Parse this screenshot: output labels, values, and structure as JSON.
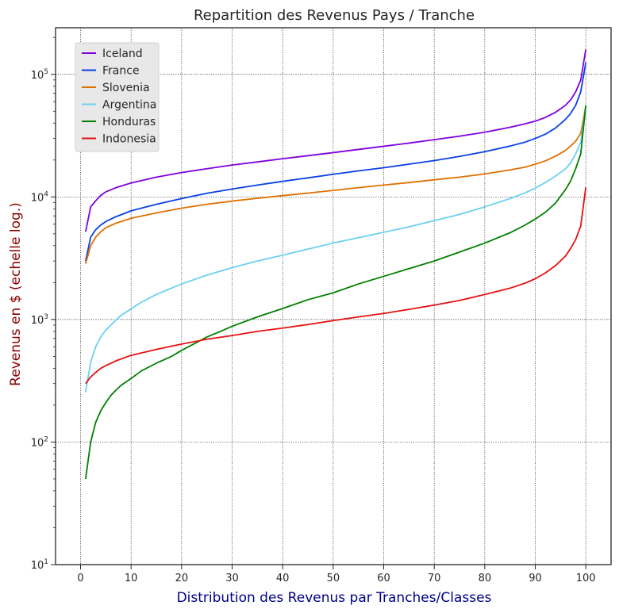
{
  "chart_data": {
    "type": "line",
    "title": "Repartition des Revenus Pays / Tranche",
    "xlabel": "Distribution des Revenus par Tranches/Classes",
    "ylabel": "Revenus en $  (echelle log.)",
    "xlim": [
      -4.95,
      105
    ],
    "ylim": [
      10,
      240000
    ],
    "yscale": "log",
    "grid": true,
    "legend_position": "top-left",
    "x_ticks": [
      0,
      10,
      20,
      30,
      40,
      50,
      60,
      70,
      80,
      90,
      100
    ],
    "y_ticks": [
      {
        "value": 10,
        "base": "10",
        "exp": "1"
      },
      {
        "value": 100,
        "base": "10",
        "exp": "2"
      },
      {
        "value": 1000,
        "base": "10",
        "exp": "3"
      },
      {
        "value": 10000,
        "base": "10",
        "exp": "4"
      },
      {
        "value": 100000,
        "base": "10",
        "exp": "5"
      }
    ],
    "colors": {
      "title": "#262626",
      "xlabel": "#00008b",
      "ylabel": "#8b0000",
      "grid": "#262626",
      "legend_bg": "#e8e8e8"
    },
    "series": [
      {
        "name": "Iceland",
        "color": "#8000e0",
        "points": [
          [
            1,
            5200
          ],
          [
            2,
            8300
          ],
          [
            3,
            9300
          ],
          [
            4,
            10300
          ],
          [
            5,
            11000
          ],
          [
            7,
            11900
          ],
          [
            10,
            13000
          ],
          [
            15,
            14500
          ],
          [
            20,
            15800
          ],
          [
            25,
            17000
          ],
          [
            30,
            18200
          ],
          [
            35,
            19300
          ],
          [
            40,
            20500
          ],
          [
            45,
            21700
          ],
          [
            50,
            23000
          ],
          [
            55,
            24400
          ],
          [
            60,
            25900
          ],
          [
            65,
            27500
          ],
          [
            70,
            29300
          ],
          [
            75,
            31300
          ],
          [
            80,
            33700
          ],
          [
            85,
            37000
          ],
          [
            88,
            39500
          ],
          [
            90,
            41500
          ],
          [
            92,
            44500
          ],
          [
            94,
            49000
          ],
          [
            96,
            56000
          ],
          [
            97,
            62000
          ],
          [
            98,
            72000
          ],
          [
            99,
            90000
          ],
          [
            100,
            160000
          ]
        ]
      },
      {
        "name": "France",
        "color": "#0a40e6",
        "points": [
          [
            1,
            3000
          ],
          [
            2,
            4700
          ],
          [
            3,
            5400
          ],
          [
            4,
            5900
          ],
          [
            5,
            6300
          ],
          [
            7,
            6900
          ],
          [
            10,
            7700
          ],
          [
            15,
            8700
          ],
          [
            20,
            9700
          ],
          [
            25,
            10700
          ],
          [
            30,
            11600
          ],
          [
            35,
            12500
          ],
          [
            40,
            13400
          ],
          [
            45,
            14300
          ],
          [
            50,
            15300
          ],
          [
            55,
            16300
          ],
          [
            60,
            17300
          ],
          [
            65,
            18500
          ],
          [
            70,
            19800
          ],
          [
            75,
            21400
          ],
          [
            80,
            23400
          ],
          [
            85,
            26000
          ],
          [
            88,
            28000
          ],
          [
            90,
            30000
          ],
          [
            92,
            32500
          ],
          [
            94,
            36500
          ],
          [
            96,
            43000
          ],
          [
            97,
            48000
          ],
          [
            98,
            56000
          ],
          [
            99,
            72000
          ],
          [
            100,
            125000
          ]
        ]
      },
      {
        "name": "Slovenia",
        "color": "#e07000",
        "points": [
          [
            1,
            2850
          ],
          [
            2,
            4000
          ],
          [
            3,
            4700
          ],
          [
            4,
            5200
          ],
          [
            5,
            5600
          ],
          [
            7,
            6100
          ],
          [
            10,
            6700
          ],
          [
            15,
            7400
          ],
          [
            20,
            8100
          ],
          [
            25,
            8700
          ],
          [
            30,
            9250
          ],
          [
            35,
            9750
          ],
          [
            40,
            10250
          ],
          [
            45,
            10750
          ],
          [
            50,
            11300
          ],
          [
            55,
            11900
          ],
          [
            60,
            12500
          ],
          [
            65,
            13100
          ],
          [
            70,
            13800
          ],
          [
            75,
            14500
          ],
          [
            80,
            15400
          ],
          [
            85,
            16600
          ],
          [
            88,
            17500
          ],
          [
            90,
            18500
          ],
          [
            92,
            19700
          ],
          [
            94,
            21500
          ],
          [
            96,
            24000
          ],
          [
            97,
            26000
          ],
          [
            98,
            28500
          ],
          [
            99,
            33000
          ],
          [
            100,
            55000
          ]
        ]
      },
      {
        "name": "Argentina",
        "color": "#6cd0f0",
        "points": [
          [
            1,
            255
          ],
          [
            2,
            450
          ],
          [
            3,
            600
          ],
          [
            4,
            720
          ],
          [
            5,
            820
          ],
          [
            6,
            900
          ],
          [
            7,
            990
          ],
          [
            8,
            1080
          ],
          [
            10,
            1220
          ],
          [
            12,
            1380
          ],
          [
            15,
            1600
          ],
          [
            20,
            1950
          ],
          [
            25,
            2300
          ],
          [
            30,
            2650
          ],
          [
            35,
            3000
          ],
          [
            40,
            3350
          ],
          [
            45,
            3750
          ],
          [
            50,
            4200
          ],
          [
            55,
            4650
          ],
          [
            60,
            5150
          ],
          [
            65,
            5700
          ],
          [
            70,
            6400
          ],
          [
            75,
            7200
          ],
          [
            80,
            8300
          ],
          [
            85,
            9700
          ],
          [
            88,
            10800
          ],
          [
            90,
            11800
          ],
          [
            92,
            13100
          ],
          [
            94,
            14800
          ],
          [
            96,
            17000
          ],
          [
            97,
            19000
          ],
          [
            98,
            22500
          ],
          [
            99,
            28000
          ],
          [
            100,
            55000
          ]
        ]
      },
      {
        "name": "Honduras",
        "color": "#008000",
        "points": [
          [
            1,
            50
          ],
          [
            2,
            100
          ],
          [
            3,
            145
          ],
          [
            4,
            180
          ],
          [
            5,
            210
          ],
          [
            6,
            240
          ],
          [
            7,
            265
          ],
          [
            8,
            290
          ],
          [
            10,
            330
          ],
          [
            12,
            380
          ],
          [
            15,
            440
          ],
          [
            18,
            500
          ],
          [
            20,
            560
          ],
          [
            23,
            650
          ],
          [
            25,
            720
          ],
          [
            28,
            810
          ],
          [
            30,
            880
          ],
          [
            35,
            1050
          ],
          [
            40,
            1230
          ],
          [
            45,
            1450
          ],
          [
            50,
            1650
          ],
          [
            55,
            1950
          ],
          [
            60,
            2250
          ],
          [
            65,
            2600
          ],
          [
            70,
            3000
          ],
          [
            75,
            3550
          ],
          [
            80,
            4200
          ],
          [
            85,
            5100
          ],
          [
            88,
            5900
          ],
          [
            90,
            6600
          ],
          [
            92,
            7500
          ],
          [
            94,
            8900
          ],
          [
            96,
            11500
          ],
          [
            97,
            13500
          ],
          [
            98,
            17000
          ],
          [
            99,
            22500
          ],
          [
            100,
            56000
          ]
        ]
      },
      {
        "name": "Indonesia",
        "color": "#e81010",
        "points": [
          [
            1,
            300
          ],
          [
            2,
            340
          ],
          [
            3,
            370
          ],
          [
            4,
            400
          ],
          [
            5,
            420
          ],
          [
            7,
            460
          ],
          [
            10,
            510
          ],
          [
            15,
            570
          ],
          [
            20,
            630
          ],
          [
            25,
            690
          ],
          [
            30,
            740
          ],
          [
            35,
            800
          ],
          [
            40,
            850
          ],
          [
            45,
            910
          ],
          [
            50,
            980
          ],
          [
            55,
            1050
          ],
          [
            60,
            1120
          ],
          [
            65,
            1210
          ],
          [
            70,
            1310
          ],
          [
            75,
            1430
          ],
          [
            80,
            1600
          ],
          [
            85,
            1800
          ],
          [
            88,
            1980
          ],
          [
            90,
            2150
          ],
          [
            92,
            2400
          ],
          [
            94,
            2750
          ],
          [
            96,
            3300
          ],
          [
            97,
            3800
          ],
          [
            98,
            4500
          ],
          [
            99,
            5800
          ],
          [
            100,
            12000
          ]
        ]
      }
    ]
  }
}
